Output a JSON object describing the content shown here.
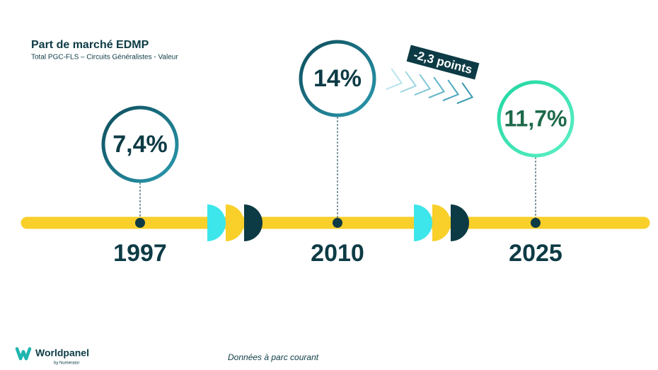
{
  "header": {
    "title": "Part de marché EDMP",
    "subtitle": "Total PGC-FLS – Circuits Généralistes - Valeur"
  },
  "milestones": [
    {
      "year": "1997",
      "value": "7,4%"
    },
    {
      "year": "2010",
      "value": "14%"
    },
    {
      "year": "2025",
      "value": "11,7%"
    }
  ],
  "annotation": "-2,3 points",
  "footer": {
    "note": "Données à parc courant",
    "brand": "Worldpanel",
    "brand_sub": "by Numerator"
  }
}
